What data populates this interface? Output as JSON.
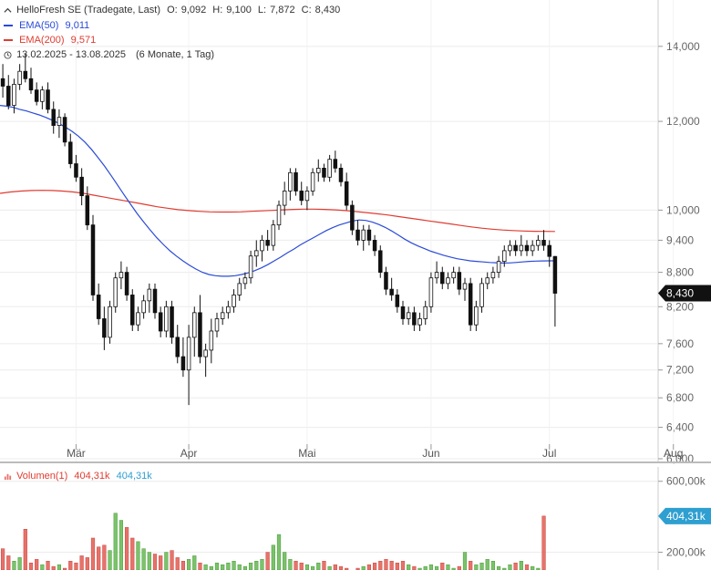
{
  "header": {
    "instrument": "HelloFresh SE (Tradegate, Last)",
    "ohlc": {
      "o_label": "O:",
      "o": "9,092",
      "h_label": "H:",
      "h": "9,100",
      "l_label": "L:",
      "l": "7,872",
      "c_label": "C:",
      "c": "8,430"
    },
    "ema50_label": "EMA(50)",
    "ema50_value": "9,011",
    "ema200_label": "EMA(200)",
    "ema200_value": "9,571",
    "range": "13.02.2025 - 13.08.2025",
    "period": "(6 Monate, 1 Tag)"
  },
  "volume_legend": {
    "label": "Volumen(1)",
    "value_red": "404,31k",
    "value_blue": "404,31k"
  },
  "colors": {
    "ema50": "#2a4bd7",
    "ema200": "#e03c31",
    "candle": "#111111",
    "vol_up": "#7ac36a",
    "vol_down": "#e8726a",
    "last_price_badge": "#111111",
    "volume_badge": "#2e9fd0"
  },
  "chart_data": [
    {
      "type": "candlestick",
      "title": "HelloFresh SE (Tradegate, Last)",
      "y_scale": "log",
      "y_range": [
        6000,
        15000
      ],
      "y_ticks": [
        6000,
        6400,
        6800,
        7200,
        7600,
        8200,
        8800,
        9400,
        10000,
        12000,
        14000
      ],
      "y_tick_labels": [
        "6,000",
        "6,400",
        "6,800",
        "7,200",
        "7,600",
        "8,200",
        "8,800",
        "9,400",
        "10,000",
        "12,000",
        "14,000"
      ],
      "x_labels": [
        "Mär",
        "Apr",
        "Mai",
        "Jun",
        "Jul",
        "Aug"
      ],
      "x_label_days": [
        13,
        33,
        54,
        76,
        97,
        119
      ],
      "last_price_label": "8,430",
      "last_price": 8430,
      "candles": [
        [
          13100,
          13500,
          12600,
          12900
        ],
        [
          12900,
          13200,
          12300,
          12400
        ],
        [
          12400,
          13100,
          12200,
          12950
        ],
        [
          12950,
          13500,
          12800,
          13300
        ],
        [
          13300,
          13800,
          13000,
          13100
        ],
        [
          13100,
          13400,
          12700,
          12800
        ],
        [
          12800,
          13000,
          12400,
          12500
        ],
        [
          12500,
          12900,
          12300,
          12800
        ],
        [
          12800,
          13000,
          12200,
          12300
        ],
        [
          12300,
          12500,
          11700,
          11900
        ],
        [
          11900,
          12300,
          11600,
          12100
        ],
        [
          12100,
          12200,
          11400,
          11500
        ],
        [
          11500,
          11700,
          10900,
          11000
        ],
        [
          11000,
          11200,
          10600,
          10700
        ],
        [
          10700,
          10900,
          10100,
          10300
        ],
        [
          10300,
          10500,
          9600,
          9700
        ],
        [
          9700,
          9900,
          8300,
          8400
        ],
        [
          8400,
          8600,
          7900,
          8000
        ],
        [
          8000,
          8200,
          7500,
          7700
        ],
        [
          7700,
          8300,
          7600,
          8200
        ],
        [
          8200,
          8800,
          8100,
          8700
        ],
        [
          8700,
          9000,
          8500,
          8800
        ],
        [
          8800,
          8900,
          8300,
          8400
        ],
        [
          8400,
          8500,
          7800,
          7900
        ],
        [
          7900,
          8200,
          7800,
          8100
        ],
        [
          8100,
          8400,
          8000,
          8300
        ],
        [
          8300,
          8600,
          8100,
          8500
        ],
        [
          8500,
          8600,
          8000,
          8100
        ],
        [
          8100,
          8200,
          7700,
          7800
        ],
        [
          7800,
          8300,
          7700,
          8200
        ],
        [
          8200,
          8300,
          7600,
          7700
        ],
        [
          7700,
          7900,
          7300,
          7400
        ],
        [
          7400,
          7700,
          7100,
          7200
        ],
        [
          7200,
          7900,
          6700,
          7700
        ],
        [
          7700,
          8200,
          7400,
          8100
        ],
        [
          8100,
          8400,
          7300,
          7400
        ],
        [
          7400,
          7600,
          7100,
          7500
        ],
        [
          7500,
          8000,
          7300,
          7800
        ],
        [
          7800,
          8100,
          7700,
          8000
        ],
        [
          8000,
          8200,
          7900,
          8100
        ],
        [
          8100,
          8300,
          8000,
          8200
        ],
        [
          8200,
          8500,
          8100,
          8400
        ],
        [
          8400,
          8700,
          8300,
          8600
        ],
        [
          8600,
          8800,
          8500,
          8700
        ],
        [
          8700,
          9200,
          8600,
          9100
        ],
        [
          9100,
          9400,
          8900,
          9200
        ],
        [
          9200,
          9500,
          9000,
          9400
        ],
        [
          9400,
          9600,
          9200,
          9300
        ],
        [
          9300,
          9800,
          9200,
          9700
        ],
        [
          9700,
          10200,
          9600,
          10100
        ],
        [
          10100,
          10600,
          9900,
          10400
        ],
        [
          10400,
          10900,
          10200,
          10800
        ],
        [
          10800,
          10900,
          10300,
          10400
        ],
        [
          10400,
          10600,
          10100,
          10200
        ],
        [
          10200,
          10500,
          10000,
          10400
        ],
        [
          10400,
          10900,
          10300,
          10800
        ],
        [
          10800,
          11100,
          10600,
          10900
        ],
        [
          10900,
          11000,
          10600,
          10700
        ],
        [
          10700,
          11200,
          10600,
          11100
        ],
        [
          11100,
          11300,
          10800,
          10900
        ],
        [
          10900,
          11000,
          10500,
          10600
        ],
        [
          10600,
          10800,
          10000,
          10100
        ],
        [
          10100,
          10200,
          9500,
          9600
        ],
        [
          9600,
          9800,
          9300,
          9400
        ],
        [
          9400,
          9700,
          9200,
          9600
        ],
        [
          9600,
          9700,
          9300,
          9400
        ],
        [
          9400,
          9500,
          9100,
          9200
        ],
        [
          9200,
          9300,
          8700,
          8800
        ],
        [
          8800,
          8900,
          8400,
          8500
        ],
        [
          8500,
          8700,
          8300,
          8400
        ],
        [
          8400,
          8500,
          8100,
          8200
        ],
        [
          8200,
          8300,
          7900,
          8000
        ],
        [
          8000,
          8200,
          7900,
          8100
        ],
        [
          8100,
          8200,
          7800,
          7900
        ],
        [
          7900,
          8100,
          7800,
          8000
        ],
        [
          8000,
          8300,
          7900,
          8200
        ],
        [
          8200,
          8800,
          8100,
          8700
        ],
        [
          8700,
          9000,
          8600,
          8800
        ],
        [
          8800,
          8900,
          8500,
          8600
        ],
        [
          8600,
          8800,
          8500,
          8700
        ],
        [
          8700,
          8900,
          8600,
          8800
        ],
        [
          8800,
          8900,
          8400,
          8500
        ],
        [
          8500,
          8700,
          8300,
          8600
        ],
        [
          8600,
          8700,
          7800,
          7900
        ],
        [
          7900,
          8300,
          7800,
          8200
        ],
        [
          8200,
          8700,
          8100,
          8600
        ],
        [
          8600,
          8800,
          8500,
          8700
        ],
        [
          8700,
          8900,
          8600,
          8800
        ],
        [
          8800,
          9100,
          8700,
          9000
        ],
        [
          9000,
          9300,
          8900,
          9200
        ],
        [
          9200,
          9400,
          9100,
          9300
        ],
        [
          9300,
          9400,
          9100,
          9200
        ],
        [
          9200,
          9500,
          9100,
          9300
        ],
        [
          9300,
          9400,
          9100,
          9200
        ],
        [
          9200,
          9400,
          9100,
          9300
        ],
        [
          9300,
          9500,
          9200,
          9400
        ],
        [
          9400,
          9600,
          9200,
          9300
        ],
        [
          9300,
          9400,
          8900,
          9092
        ],
        [
          9092,
          9100,
          7872,
          8430
        ]
      ],
      "ema50": [
        12400,
        12380,
        12350,
        12300,
        12260,
        12210,
        12160,
        12100,
        12030,
        11950,
        11860,
        11760,
        11640,
        11500,
        11330,
        11140,
        10950,
        10740,
        10530,
        10320,
        10120,
        9930,
        9760,
        9600,
        9450,
        9320,
        9200,
        9100,
        9010,
        8930,
        8860,
        8800,
        8760,
        8740,
        8730,
        8730,
        8740,
        8760,
        8790,
        8830,
        8880,
        8940,
        9010,
        9080,
        9160,
        9230,
        9310,
        9380,
        9450,
        9520,
        9590,
        9650,
        9700,
        9740,
        9780,
        9800,
        9790,
        9760,
        9710,
        9650,
        9580,
        9500,
        9420,
        9350,
        9290,
        9240,
        9190,
        9150,
        9110,
        9080,
        9050,
        9030,
        9010,
        9000,
        8990,
        8980,
        8975,
        8970,
        8972,
        8980,
        8990,
        9000,
        9005,
        9008,
        9010,
        9011
      ],
      "ema200": [
        10350,
        10380,
        10400,
        10410,
        10415,
        10410,
        10400,
        10380,
        10350,
        10310,
        10270,
        10230,
        10190,
        10150,
        10110,
        10070,
        10040,
        10010,
        9990,
        9975,
        9965,
        9960,
        9960,
        9965,
        9975,
        9985,
        9995,
        10005,
        10015,
        10020,
        10020,
        10015,
        10005,
        9990,
        9970,
        9950,
        9925,
        9900,
        9870,
        9840,
        9810,
        9780,
        9750,
        9720,
        9690,
        9660,
        9635,
        9615,
        9600,
        9588,
        9580,
        9575,
        9572,
        9571
      ],
      "series": [
        {
          "name": "EMA(50)",
          "last_value": "9,011"
        },
        {
          "name": "EMA(200)",
          "last_value": "9,571"
        }
      ]
    },
    {
      "type": "bar",
      "title": "Volumen(1)",
      "y_range": [
        100,
        650
      ],
      "y_ticks": [
        200,
        600
      ],
      "y_tick_labels": [
        "200,00k",
        "600,00k"
      ],
      "unit": "k",
      "last_value_label": "404,31k",
      "values": [
        220,
        180,
        150,
        170,
        330,
        140,
        160,
        130,
        150,
        120,
        130,
        110,
        150,
        140,
        180,
        170,
        280,
        230,
        240,
        210,
        420,
        380,
        340,
        280,
        260,
        220,
        200,
        190,
        180,
        200,
        210,
        170,
        150,
        160,
        180,
        140,
        130,
        120,
        140,
        130,
        140,
        150,
        130,
        120,
        140,
        150,
        160,
        200,
        240,
        300,
        200,
        160,
        150,
        140,
        130,
        120,
        140,
        150,
        120,
        130,
        120,
        110,
        100,
        110,
        120,
        130,
        140,
        150,
        160,
        150,
        140,
        150,
        130,
        120,
        110,
        120,
        130,
        120,
        140,
        130,
        110,
        120,
        200,
        150,
        130,
        140,
        160,
        150,
        120,
        110,
        130,
        140,
        150,
        130,
        120,
        110,
        404
      ]
    }
  ]
}
